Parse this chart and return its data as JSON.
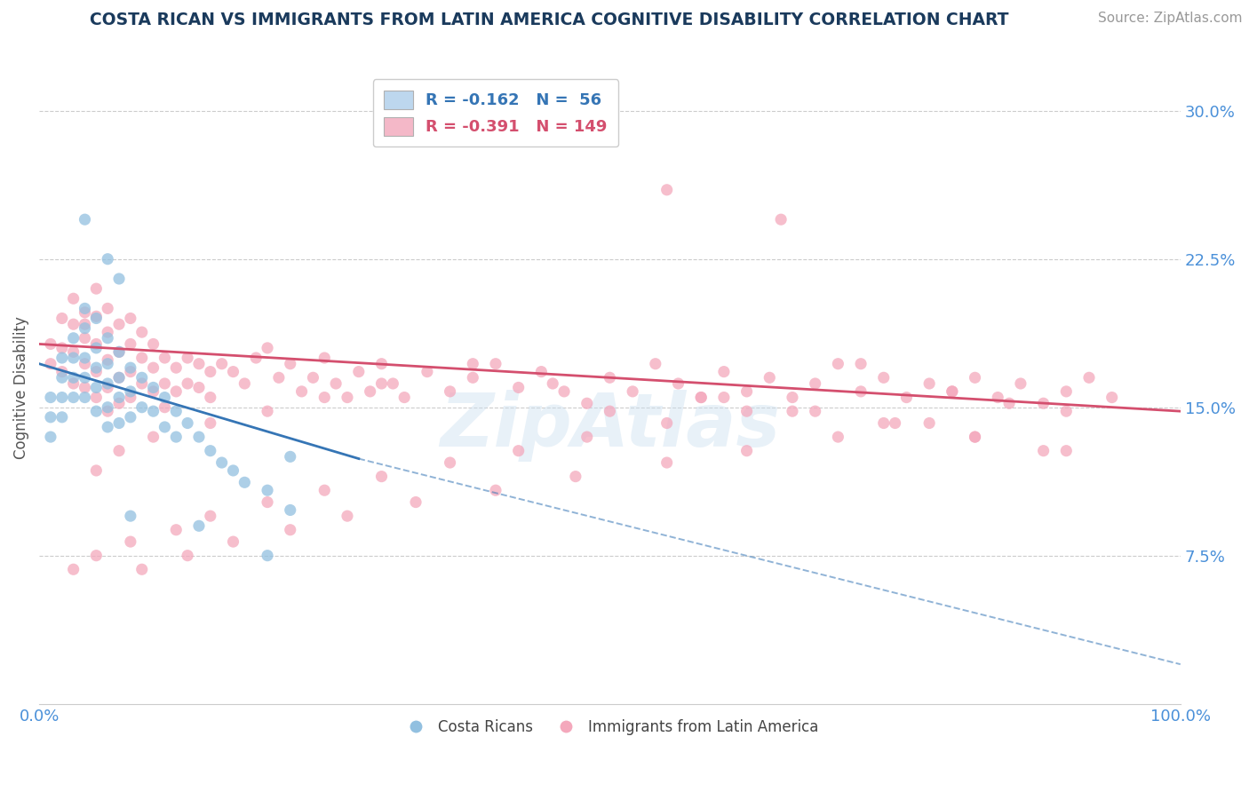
{
  "title": "COSTA RICAN VS IMMIGRANTS FROM LATIN AMERICA COGNITIVE DISABILITY CORRELATION CHART",
  "source": "Source: ZipAtlas.com",
  "ylabel": "Cognitive Disability",
  "xlim": [
    0.0,
    1.0
  ],
  "ylim": [
    0.0,
    0.32
  ],
  "yticks": [
    0.075,
    0.15,
    0.225,
    0.3
  ],
  "ytick_labels": [
    "7.5%",
    "15.0%",
    "22.5%",
    "30.0%"
  ],
  "xticks": [
    0.0,
    0.25,
    0.5,
    0.75,
    1.0
  ],
  "xtick_labels": [
    "0.0%",
    "",
    "",
    "",
    "100.0%"
  ],
  "blue_color": "#92c0e0",
  "pink_color": "#f4a8bc",
  "blue_line_color": "#3575b5",
  "pink_line_color": "#d44f6e",
  "legend_blue_label": "R = -0.162   N =  56",
  "legend_pink_label": "R = -0.391   N = 149",
  "legend_blue_face": "#bdd7ee",
  "legend_pink_face": "#f4b8c8",
  "watermark": "ZipAtlas",
  "background_color": "#ffffff",
  "grid_color": "#cccccc",
  "title_color": "#1a3a5c",
  "axis_color": "#4a90d9",
  "blue_line_start_x": 0.0,
  "blue_line_solid_end_x": 0.28,
  "blue_line_end_x": 1.0,
  "blue_line_start_y": 0.172,
  "blue_line_solid_end_y": 0.124,
  "blue_line_end_y": 0.02,
  "pink_line_start_x": 0.0,
  "pink_line_end_x": 1.0,
  "pink_line_start_y": 0.182,
  "pink_line_end_y": 0.148,
  "blue_scatter_x": [
    0.01,
    0.01,
    0.01,
    0.02,
    0.02,
    0.02,
    0.02,
    0.03,
    0.03,
    0.03,
    0.03,
    0.04,
    0.04,
    0.04,
    0.04,
    0.04,
    0.05,
    0.05,
    0.05,
    0.05,
    0.05,
    0.06,
    0.06,
    0.06,
    0.06,
    0.06,
    0.07,
    0.07,
    0.07,
    0.07,
    0.08,
    0.08,
    0.08,
    0.09,
    0.09,
    0.1,
    0.1,
    0.11,
    0.11,
    0.12,
    0.12,
    0.13,
    0.14,
    0.15,
    0.16,
    0.17,
    0.18,
    0.2,
    0.22,
    0.22,
    0.04,
    0.06,
    0.07,
    0.08,
    0.14,
    0.2
  ],
  "blue_scatter_y": [
    0.155,
    0.145,
    0.135,
    0.175,
    0.165,
    0.155,
    0.145,
    0.185,
    0.175,
    0.165,
    0.155,
    0.2,
    0.19,
    0.175,
    0.165,
    0.155,
    0.195,
    0.18,
    0.17,
    0.16,
    0.148,
    0.185,
    0.172,
    0.162,
    0.15,
    0.14,
    0.178,
    0.165,
    0.155,
    0.142,
    0.17,
    0.158,
    0.145,
    0.165,
    0.15,
    0.16,
    0.148,
    0.155,
    0.14,
    0.148,
    0.135,
    0.142,
    0.135,
    0.128,
    0.122,
    0.118,
    0.112,
    0.108,
    0.098,
    0.125,
    0.245,
    0.225,
    0.215,
    0.095,
    0.09,
    0.075
  ],
  "pink_scatter_x": [
    0.01,
    0.01,
    0.02,
    0.02,
    0.02,
    0.03,
    0.03,
    0.03,
    0.03,
    0.04,
    0.04,
    0.04,
    0.04,
    0.04,
    0.05,
    0.05,
    0.05,
    0.05,
    0.05,
    0.06,
    0.06,
    0.06,
    0.06,
    0.06,
    0.07,
    0.07,
    0.07,
    0.07,
    0.08,
    0.08,
    0.08,
    0.08,
    0.09,
    0.09,
    0.09,
    0.1,
    0.1,
    0.1,
    0.11,
    0.11,
    0.11,
    0.12,
    0.12,
    0.13,
    0.13,
    0.14,
    0.14,
    0.15,
    0.15,
    0.16,
    0.17,
    0.18,
    0.19,
    0.2,
    0.21,
    0.22,
    0.23,
    0.24,
    0.25,
    0.26,
    0.27,
    0.28,
    0.29,
    0.3,
    0.31,
    0.32,
    0.34,
    0.36,
    0.38,
    0.4,
    0.42,
    0.44,
    0.46,
    0.48,
    0.5,
    0.52,
    0.54,
    0.56,
    0.58,
    0.6,
    0.62,
    0.64,
    0.66,
    0.68,
    0.7,
    0.72,
    0.74,
    0.76,
    0.78,
    0.8,
    0.82,
    0.84,
    0.86,
    0.88,
    0.9,
    0.92,
    0.94,
    0.42,
    0.55,
    0.65,
    0.72,
    0.8,
    0.85,
    0.9,
    0.6,
    0.5,
    0.45,
    0.38,
    0.3,
    0.25,
    0.2,
    0.15,
    0.1,
    0.07,
    0.05,
    0.58,
    0.68,
    0.75,
    0.82,
    0.88,
    0.62,
    0.55,
    0.48,
    0.42,
    0.36,
    0.3,
    0.25,
    0.2,
    0.15,
    0.12,
    0.08,
    0.05,
    0.03,
    0.66,
    0.74,
    0.82,
    0.9,
    0.78,
    0.7,
    0.62,
    0.55,
    0.47,
    0.4,
    0.33,
    0.27,
    0.22,
    0.17,
    0.13,
    0.09
  ],
  "pink_scatter_y": [
    0.182,
    0.172,
    0.195,
    0.18,
    0.168,
    0.205,
    0.192,
    0.178,
    0.162,
    0.198,
    0.185,
    0.172,
    0.16,
    0.192,
    0.21,
    0.196,
    0.182,
    0.168,
    0.155,
    0.2,
    0.188,
    0.174,
    0.16,
    0.148,
    0.192,
    0.178,
    0.165,
    0.152,
    0.195,
    0.182,
    0.168,
    0.155,
    0.188,
    0.175,
    0.162,
    0.182,
    0.17,
    0.158,
    0.175,
    0.162,
    0.15,
    0.17,
    0.158,
    0.175,
    0.162,
    0.172,
    0.16,
    0.168,
    0.155,
    0.172,
    0.168,
    0.162,
    0.175,
    0.18,
    0.165,
    0.172,
    0.158,
    0.165,
    0.175,
    0.162,
    0.155,
    0.168,
    0.158,
    0.172,
    0.162,
    0.155,
    0.168,
    0.158,
    0.165,
    0.172,
    0.16,
    0.168,
    0.158,
    0.152,
    0.165,
    0.158,
    0.172,
    0.162,
    0.155,
    0.168,
    0.158,
    0.165,
    0.155,
    0.162,
    0.172,
    0.158,
    0.165,
    0.155,
    0.162,
    0.158,
    0.165,
    0.155,
    0.162,
    0.152,
    0.158,
    0.165,
    0.155,
    0.285,
    0.26,
    0.245,
    0.172,
    0.158,
    0.152,
    0.148,
    0.155,
    0.148,
    0.162,
    0.172,
    0.162,
    0.155,
    0.148,
    0.142,
    0.135,
    0.128,
    0.118,
    0.155,
    0.148,
    0.142,
    0.135,
    0.128,
    0.148,
    0.142,
    0.135,
    0.128,
    0.122,
    0.115,
    0.108,
    0.102,
    0.095,
    0.088,
    0.082,
    0.075,
    0.068,
    0.148,
    0.142,
    0.135,
    0.128,
    0.142,
    0.135,
    0.128,
    0.122,
    0.115,
    0.108,
    0.102,
    0.095,
    0.088,
    0.082,
    0.075,
    0.068
  ]
}
